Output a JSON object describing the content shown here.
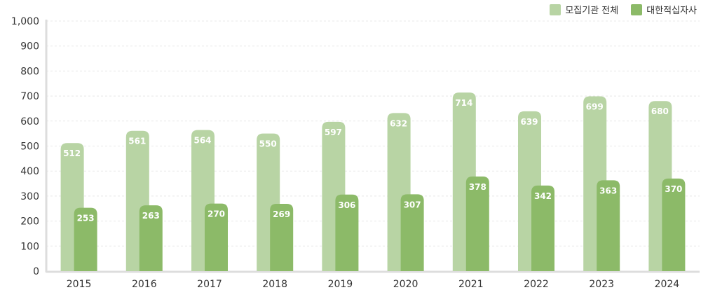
{
  "colors": {
    "series_total": "#b8d4a4",
    "series_redcross": "#8cba68",
    "axis": "#dddddd",
    "grid": "#e8e8e8",
    "text": "#333333",
    "bar_label": "#ffffff"
  },
  "chart_data": {
    "type": "bar",
    "categories": [
      "2015",
      "2016",
      "2017",
      "2018",
      "2019",
      "2020",
      "2021",
      "2022",
      "2023",
      "2024"
    ],
    "series": [
      {
        "name": "모집기관 전체",
        "values": [
          512,
          561,
          564,
          550,
          597,
          632,
          714,
          639,
          699,
          680
        ]
      },
      {
        "name": "대한적십자사",
        "values": [
          253,
          263,
          270,
          269,
          306,
          307,
          378,
          342,
          363,
          370
        ]
      }
    ],
    "ylim": [
      0,
      1000
    ],
    "yticks": [
      "0",
      "100",
      "200",
      "300",
      "400",
      "500",
      "600",
      "700",
      "800",
      "900",
      "1,000"
    ],
    "grid": true,
    "legend_position": "top-right",
    "data_labels": true
  }
}
